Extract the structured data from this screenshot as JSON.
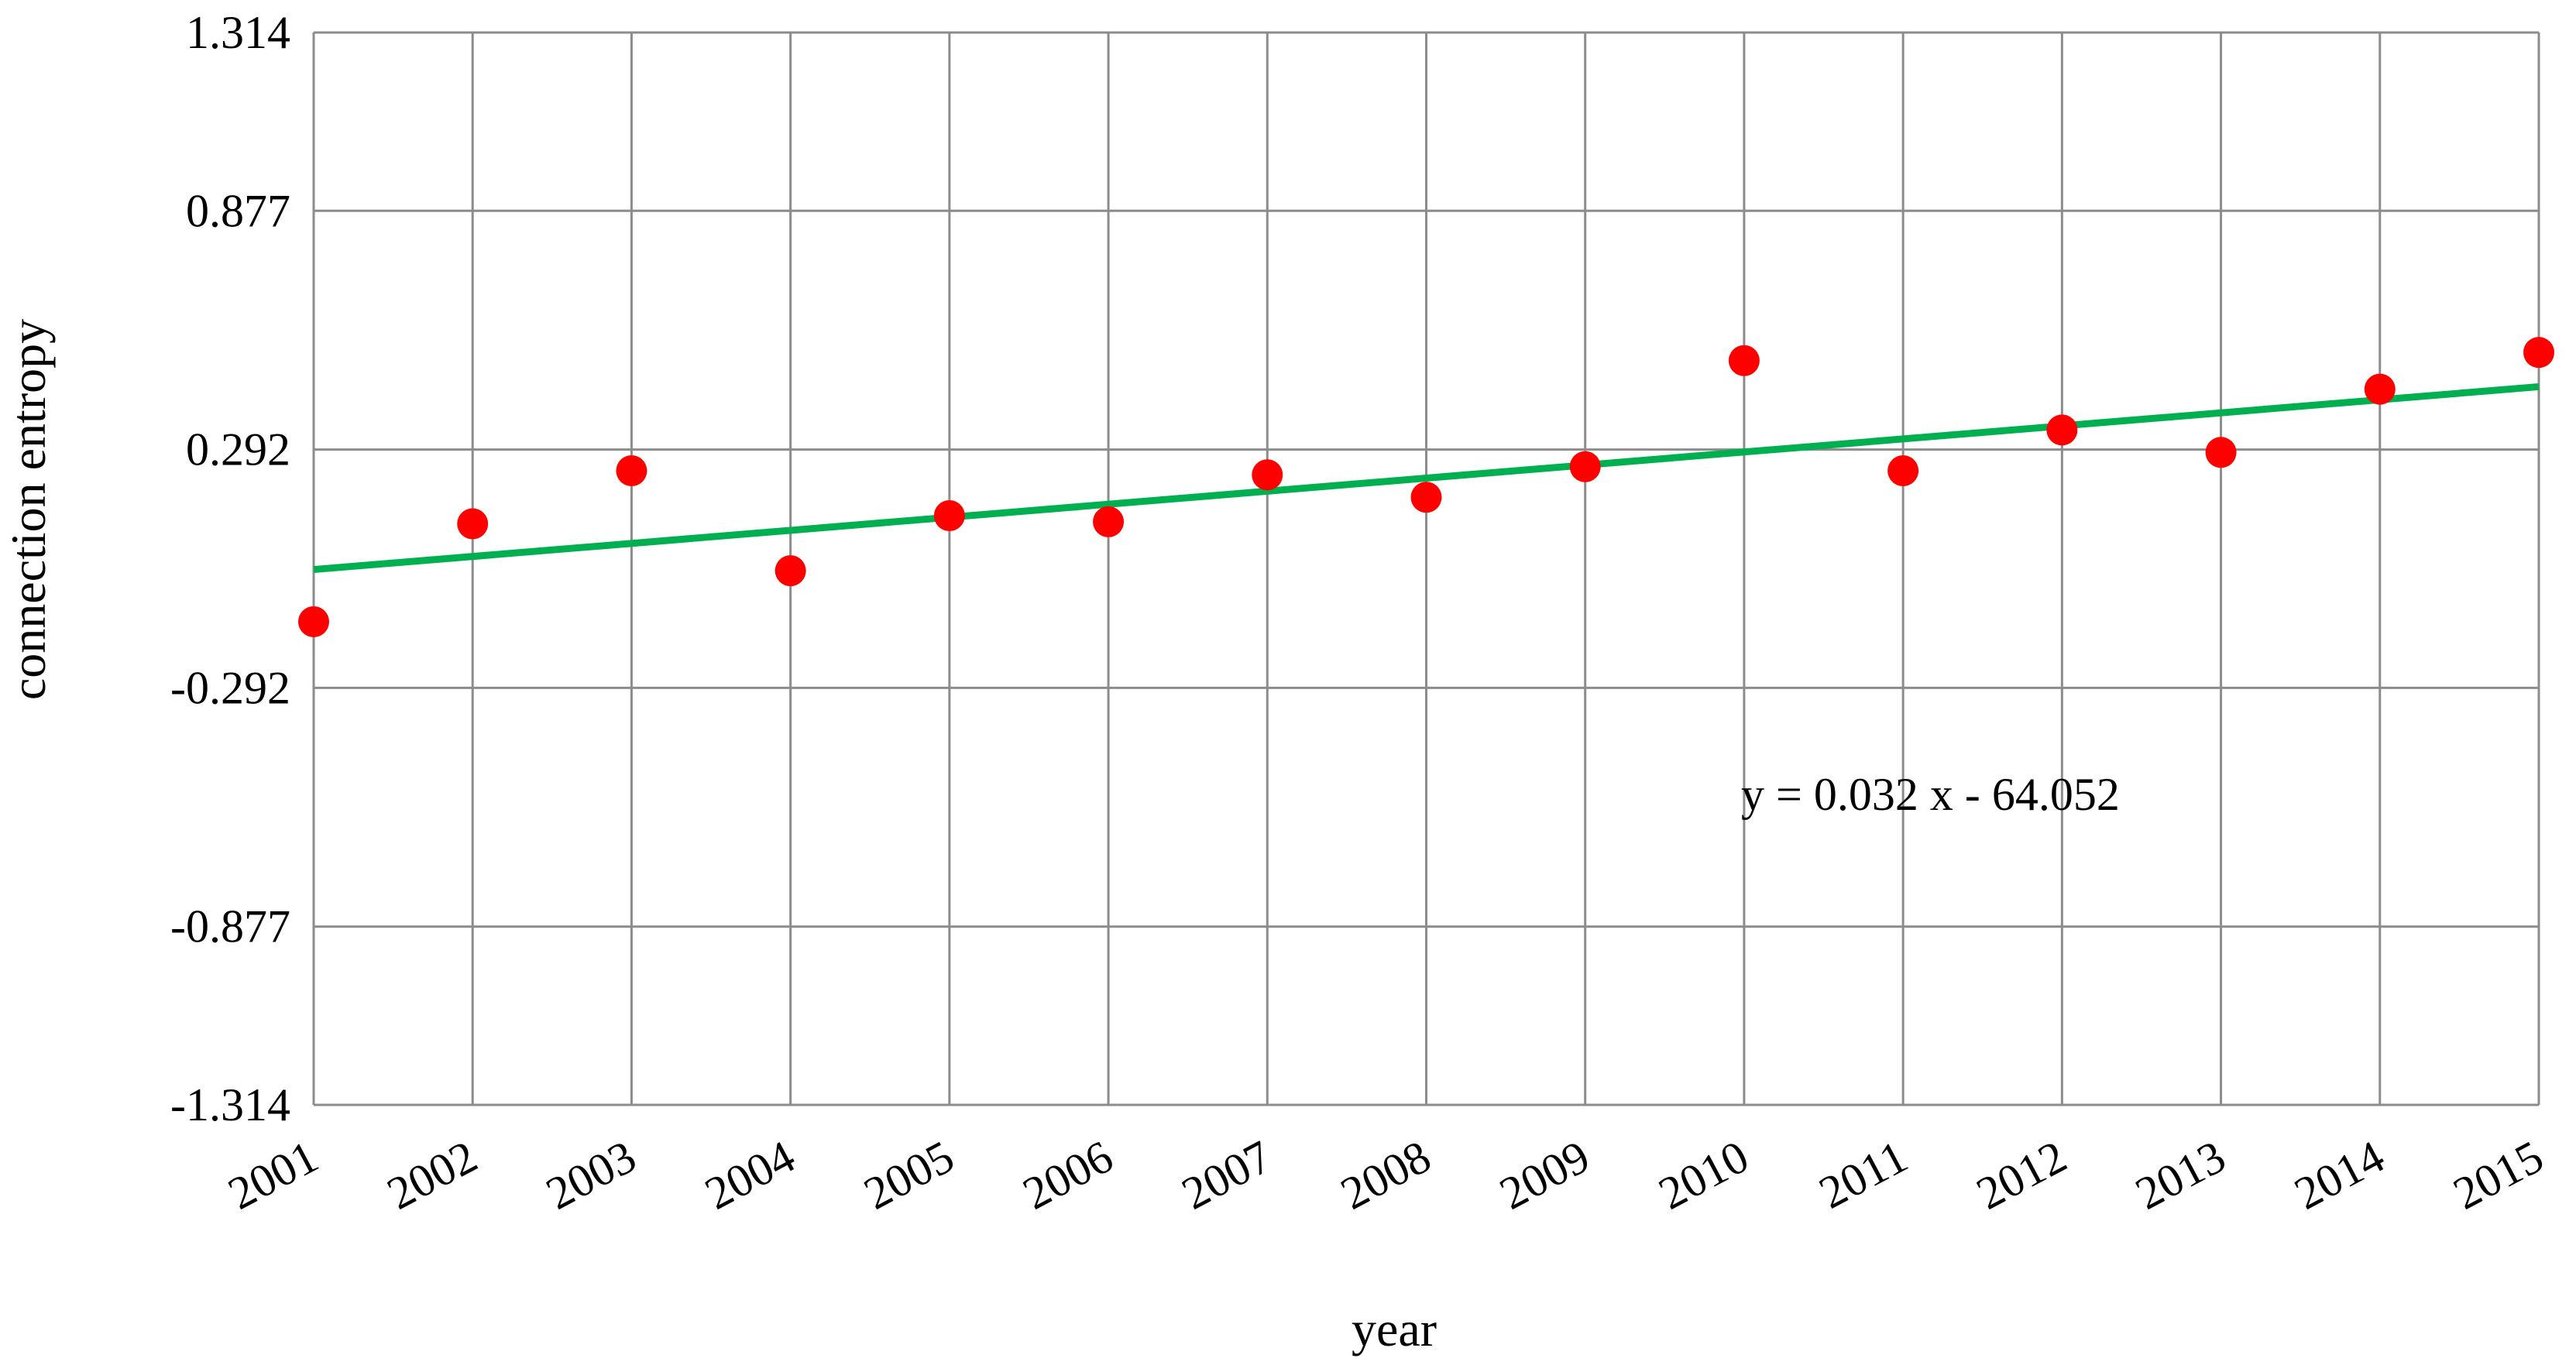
{
  "chart_data": {
    "type": "scatter",
    "title": "",
    "xlabel": "year",
    "ylabel": "connection entropy",
    "x": [
      2001,
      2002,
      2003,
      2004,
      2005,
      2006,
      2007,
      2008,
      2009,
      2010,
      2011,
      2012,
      2013,
      2014,
      2015
    ],
    "ylim": [
      -1.314,
      1.314
    ],
    "y_ticks": [
      "1.314",
      "0.877",
      "0.292",
      "-0.292",
      "-0.877",
      "-1.314"
    ],
    "y_tick_values": [
      1.314,
      0.877,
      0.292,
      -0.292,
      -0.877,
      -1.314
    ],
    "x_tick_labels": [
      "2001",
      "2002",
      "2003",
      "2004",
      "2005",
      "2006",
      "2007",
      "2008",
      "2009",
      "2010",
      "2011",
      "2012",
      "2013",
      "2014",
      "2015"
    ],
    "grid": true,
    "series": [
      {
        "type": "scatter",
        "color": "#ff0000",
        "values": [
          -0.13,
          0.11,
          0.24,
          -0.005,
          0.13,
          0.115,
          0.23,
          0.175,
          0.25,
          0.51,
          0.24,
          0.34,
          0.285,
          0.44,
          0.53
        ]
      },
      {
        "type": "line",
        "color": "#00b050",
        "values": [
          -0.002,
          0.03,
          0.062,
          0.094,
          0.126,
          0.158,
          0.19,
          0.222,
          0.254,
          0.286,
          0.318,
          0.35,
          0.382,
          0.414,
          0.446
        ]
      }
    ],
    "annotation": "y = 0.032 x - 64.052"
  }
}
